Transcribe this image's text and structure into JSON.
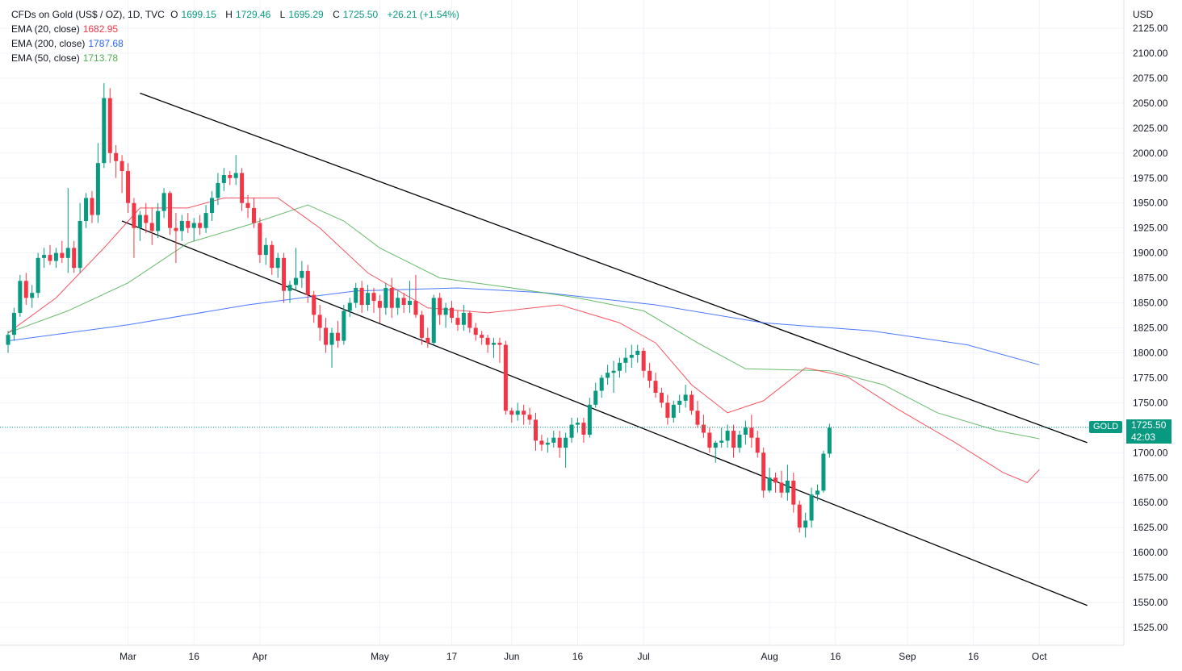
{
  "header": {
    "symbol_desc": "CFDs on Gold (US$ / OZ), 1D, TVC",
    "open_label": "O",
    "open": "1699.15",
    "high_label": "H",
    "high": "1729.46",
    "low_label": "L",
    "low": "1695.29",
    "close_label": "C",
    "close": "1725.50",
    "change": "+26.21 (+1.54%)"
  },
  "indicators": [
    {
      "label": "EMA (20, close)",
      "value": "1682.95",
      "color": "#f23645"
    },
    {
      "label": "EMA (200, close)",
      "value": "1787.68",
      "color": "#2962ff"
    },
    {
      "label": "EMA (50, close)",
      "value": "1713.78",
      "color": "#4caf50"
    }
  ],
  "price_tag": {
    "symbol": "GOLD",
    "price": "1725.50",
    "countdown": "42:03"
  },
  "colors": {
    "up": "#089981",
    "down": "#f23645",
    "ema20": "#f23645",
    "ema50": "#4caf50",
    "ema200": "#2962ff",
    "channel": "#000000"
  },
  "chart_data": {
    "type": "candlestick",
    "title": "CFDs on Gold (US$ / OZ), 1D, TVC",
    "currency": "USD",
    "ylim": [
      1510,
      2140
    ],
    "y_ticks": [
      1525,
      1550,
      1575,
      1600,
      1625,
      1650,
      1675,
      1700,
      1725,
      1750,
      1775,
      1800,
      1825,
      1850,
      1875,
      1900,
      1925,
      1950,
      1975,
      2000,
      2025,
      2050,
      2075,
      2100,
      2125
    ],
    "x_ticks": [
      {
        "label": "Mar",
        "index": 20
      },
      {
        "label": "16",
        "index": 31
      },
      {
        "label": "Apr",
        "index": 42
      },
      {
        "label": "May",
        "index": 62
      },
      {
        "label": "17",
        "index": 74
      },
      {
        "label": "Jun",
        "index": 84
      },
      {
        "label": "16",
        "index": 95
      },
      {
        "label": "Jul",
        "index": 106
      },
      {
        "label": "Aug",
        "index": 127
      },
      {
        "label": "16",
        "index": 138
      },
      {
        "label": "Sep",
        "index": 150
      },
      {
        "label": "16",
        "index": 161
      },
      {
        "label": "Oct",
        "index": 172
      }
    ],
    "candles": [
      [
        1808,
        1822,
        1800,
        1818
      ],
      [
        1818,
        1845,
        1812,
        1840
      ],
      [
        1840,
        1878,
        1836,
        1872
      ],
      [
        1872,
        1880,
        1848,
        1855
      ],
      [
        1855,
        1868,
        1845,
        1860
      ],
      [
        1860,
        1900,
        1855,
        1895
      ],
      [
        1895,
        1905,
        1885,
        1898
      ],
      [
        1898,
        1908,
        1888,
        1892
      ],
      [
        1892,
        1905,
        1885,
        1900
      ],
      [
        1900,
        1912,
        1890,
        1895
      ],
      [
        1895,
        1965,
        1880,
        1905
      ],
      [
        1905,
        1912,
        1880,
        1885
      ],
      [
        1885,
        1950,
        1880,
        1932
      ],
      [
        1932,
        1960,
        1925,
        1955
      ],
      [
        1955,
        1962,
        1930,
        1938
      ],
      [
        1938,
        2010,
        1930,
        1990
      ],
      [
        1990,
        2070,
        1985,
        2055
      ],
      [
        2055,
        2065,
        1990,
        2000
      ],
      [
        2000,
        2008,
        1975,
        1992
      ],
      [
        1992,
        1998,
        1960,
        1982
      ],
      [
        1982,
        1990,
        1940,
        1950
      ],
      [
        1950,
        1955,
        1895,
        1925
      ],
      [
        1925,
        1942,
        1912,
        1938
      ],
      [
        1938,
        1950,
        1920,
        1930
      ],
      [
        1930,
        1945,
        1908,
        1922
      ],
      [
        1922,
        1950,
        1915,
        1942
      ],
      [
        1942,
        1965,
        1935,
        1960
      ],
      [
        1960,
        1962,
        1918,
        1925
      ],
      [
        1925,
        1940,
        1890,
        1922
      ],
      [
        1922,
        1938,
        1912,
        1932
      ],
      [
        1932,
        1940,
        1920,
        1925
      ],
      [
        1925,
        1935,
        1912,
        1930
      ],
      [
        1930,
        1938,
        1918,
        1925
      ],
      [
        1925,
        1948,
        1920,
        1940
      ],
      [
        1940,
        1962,
        1932,
        1955
      ],
      [
        1955,
        1980,
        1948,
        1970
      ],
      [
        1970,
        1985,
        1962,
        1978
      ],
      [
        1978,
        1982,
        1968,
        1975
      ],
      [
        1975,
        1998,
        1968,
        1980
      ],
      [
        1980,
        1985,
        1942,
        1950
      ],
      [
        1950,
        1958,
        1935,
        1945
      ],
      [
        1945,
        1955,
        1925,
        1930
      ],
      [
        1930,
        1935,
        1890,
        1898
      ],
      [
        1898,
        1915,
        1888,
        1908
      ],
      [
        1908,
        1912,
        1878,
        1885
      ],
      [
        1885,
        1900,
        1875,
        1895
      ],
      [
        1895,
        1900,
        1850,
        1862
      ],
      [
        1862,
        1872,
        1850,
        1868
      ],
      [
        1868,
        1905,
        1862,
        1875
      ],
      [
        1875,
        1892,
        1865,
        1882
      ],
      [
        1882,
        1888,
        1850,
        1858
      ],
      [
        1858,
        1862,
        1830,
        1838
      ],
      [
        1838,
        1848,
        1812,
        1825
      ],
      [
        1825,
        1835,
        1800,
        1808
      ],
      [
        1808,
        1825,
        1785,
        1820
      ],
      [
        1820,
        1832,
        1805,
        1812
      ],
      [
        1812,
        1848,
        1808,
        1842
      ],
      [
        1842,
        1855,
        1836,
        1850
      ],
      [
        1850,
        1870,
        1845,
        1865
      ],
      [
        1865,
        1872,
        1840,
        1848
      ],
      [
        1848,
        1868,
        1842,
        1860
      ],
      [
        1860,
        1865,
        1840,
        1852
      ],
      [
        1852,
        1858,
        1830,
        1845
      ],
      [
        1845,
        1870,
        1838,
        1865
      ],
      [
        1865,
        1875,
        1835,
        1845
      ],
      [
        1845,
        1862,
        1838,
        1855
      ],
      [
        1855,
        1860,
        1840,
        1848
      ],
      [
        1848,
        1872,
        1840,
        1852
      ],
      [
        1852,
        1878,
        1835,
        1838
      ],
      [
        1838,
        1842,
        1808,
        1815
      ],
      [
        1815,
        1825,
        1805,
        1810
      ],
      [
        1810,
        1858,
        1808,
        1855
      ],
      [
        1855,
        1860,
        1828,
        1838
      ],
      [
        1838,
        1850,
        1825,
        1845
      ],
      [
        1845,
        1852,
        1830,
        1835
      ],
      [
        1835,
        1842,
        1822,
        1828
      ],
      [
        1828,
        1848,
        1822,
        1840
      ],
      [
        1840,
        1842,
        1820,
        1825
      ],
      [
        1825,
        1830,
        1812,
        1818
      ],
      [
        1818,
        1822,
        1808,
        1815
      ],
      [
        1815,
        1818,
        1800,
        1808
      ],
      [
        1808,
        1815,
        1795,
        1810
      ],
      [
        1810,
        1815,
        1790,
        1808
      ],
      [
        1808,
        1812,
        1738,
        1742
      ],
      [
        1742,
        1745,
        1730,
        1738
      ],
      [
        1738,
        1750,
        1732,
        1742
      ],
      [
        1742,
        1748,
        1728,
        1738
      ],
      [
        1738,
        1745,
        1728,
        1733
      ],
      [
        1733,
        1740,
        1702,
        1712
      ],
      [
        1712,
        1718,
        1702,
        1708
      ],
      [
        1708,
        1715,
        1700,
        1710
      ],
      [
        1710,
        1722,
        1705,
        1715
      ],
      [
        1715,
        1722,
        1695,
        1705
      ],
      [
        1705,
        1720,
        1685,
        1715
      ],
      [
        1715,
        1735,
        1710,
        1728
      ],
      [
        1728,
        1735,
        1720,
        1730
      ],
      [
        1730,
        1735,
        1710,
        1718
      ],
      [
        1718,
        1755,
        1715,
        1748
      ],
      [
        1748,
        1770,
        1745,
        1762
      ],
      [
        1762,
        1778,
        1755,
        1775
      ],
      [
        1775,
        1788,
        1768,
        1780
      ],
      [
        1780,
        1792,
        1760,
        1782
      ],
      [
        1782,
        1795,
        1775,
        1790
      ],
      [
        1790,
        1805,
        1780,
        1795
      ],
      [
        1795,
        1808,
        1785,
        1798
      ],
      [
        1798,
        1808,
        1790,
        1802
      ],
      [
        1802,
        1805,
        1775,
        1782
      ],
      [
        1782,
        1790,
        1765,
        1772
      ],
      [
        1772,
        1780,
        1755,
        1760
      ],
      [
        1760,
        1765,
        1745,
        1750
      ],
      [
        1750,
        1758,
        1728,
        1735
      ],
      [
        1735,
        1752,
        1730,
        1748
      ],
      [
        1748,
        1758,
        1740,
        1752
      ],
      [
        1752,
        1768,
        1745,
        1758
      ],
      [
        1758,
        1762,
        1738,
        1742
      ],
      [
        1742,
        1752,
        1725,
        1728
      ],
      [
        1728,
        1738,
        1715,
        1720
      ],
      [
        1720,
        1725,
        1700,
        1705
      ],
      [
        1705,
        1712,
        1690,
        1710
      ],
      [
        1710,
        1725,
        1705,
        1712
      ],
      [
        1712,
        1728,
        1705,
        1722
      ],
      [
        1722,
        1728,
        1695,
        1705
      ],
      [
        1705,
        1722,
        1700,
        1718
      ],
      [
        1718,
        1732,
        1708,
        1725
      ],
      [
        1725,
        1738,
        1705,
        1715
      ],
      [
        1715,
        1722,
        1695,
        1700
      ],
      [
        1700,
        1705,
        1655,
        1662
      ],
      [
        1662,
        1685,
        1660,
        1675
      ],
      [
        1675,
        1680,
        1660,
        1670
      ],
      [
        1670,
        1682,
        1655,
        1660
      ],
      [
        1660,
        1688,
        1652,
        1672
      ],
      [
        1672,
        1680,
        1640,
        1648
      ],
      [
        1648,
        1652,
        1620,
        1625
      ],
      [
        1625,
        1640,
        1615,
        1632
      ],
      [
        1632,
        1665,
        1625,
        1658
      ],
      [
        1658,
        1668,
        1652,
        1662
      ],
      [
        1662,
        1702,
        1660,
        1699
      ],
      [
        1699,
        1729,
        1695,
        1725
      ]
    ],
    "series": [
      {
        "name": "EMA (200, close)",
        "last": 1787.68,
        "points": [
          [
            0,
            1812
          ],
          [
            20,
            1828
          ],
          [
            40,
            1848
          ],
          [
            58,
            1862
          ],
          [
            75,
            1865
          ],
          [
            90,
            1860
          ],
          [
            108,
            1848
          ],
          [
            126,
            1830
          ],
          [
            144,
            1822
          ],
          [
            160,
            1808
          ],
          [
            172,
            1788
          ]
        ]
      },
      {
        "name": "EMA (50, close)",
        "last": 1713.78,
        "points": [
          [
            0,
            1820
          ],
          [
            10,
            1842
          ],
          [
            20,
            1870
          ],
          [
            30,
            1910
          ],
          [
            40,
            1928
          ],
          [
            50,
            1948
          ],
          [
            56,
            1932
          ],
          [
            62,
            1905
          ],
          [
            72,
            1875
          ],
          [
            84,
            1865
          ],
          [
            95,
            1855
          ],
          [
            106,
            1842
          ],
          [
            115,
            1810
          ],
          [
            123,
            1784
          ],
          [
            130,
            1783
          ],
          [
            137,
            1782
          ],
          [
            146,
            1768
          ],
          [
            155,
            1740
          ],
          [
            165,
            1722
          ],
          [
            172,
            1714
          ]
        ]
      },
      {
        "name": "EMA (20, close)",
        "last": 1682.95,
        "points": [
          [
            0,
            1820
          ],
          [
            8,
            1855
          ],
          [
            16,
            1905
          ],
          [
            22,
            1945
          ],
          [
            30,
            1945
          ],
          [
            36,
            1955
          ],
          [
            45,
            1955
          ],
          [
            52,
            1925
          ],
          [
            60,
            1880
          ],
          [
            70,
            1845
          ],
          [
            80,
            1840
          ],
          [
            92,
            1848
          ],
          [
            102,
            1830
          ],
          [
            108,
            1810
          ],
          [
            114,
            1768
          ],
          [
            120,
            1740
          ],
          [
            126,
            1752
          ],
          [
            133,
            1785
          ],
          [
            140,
            1776
          ],
          [
            148,
            1745
          ],
          [
            158,
            1710
          ],
          [
            166,
            1680
          ],
          [
            170,
            1670
          ],
          [
            172,
            1683
          ]
        ]
      }
    ],
    "trendlines": [
      {
        "name": "channel-upper",
        "from": [
          22,
          2060
        ],
        "to": [
          180,
          1710
        ]
      },
      {
        "name": "channel-lower",
        "from": [
          19,
          1932
        ],
        "to": [
          180,
          1547
        ]
      }
    ],
    "last_price": 1725.5
  }
}
